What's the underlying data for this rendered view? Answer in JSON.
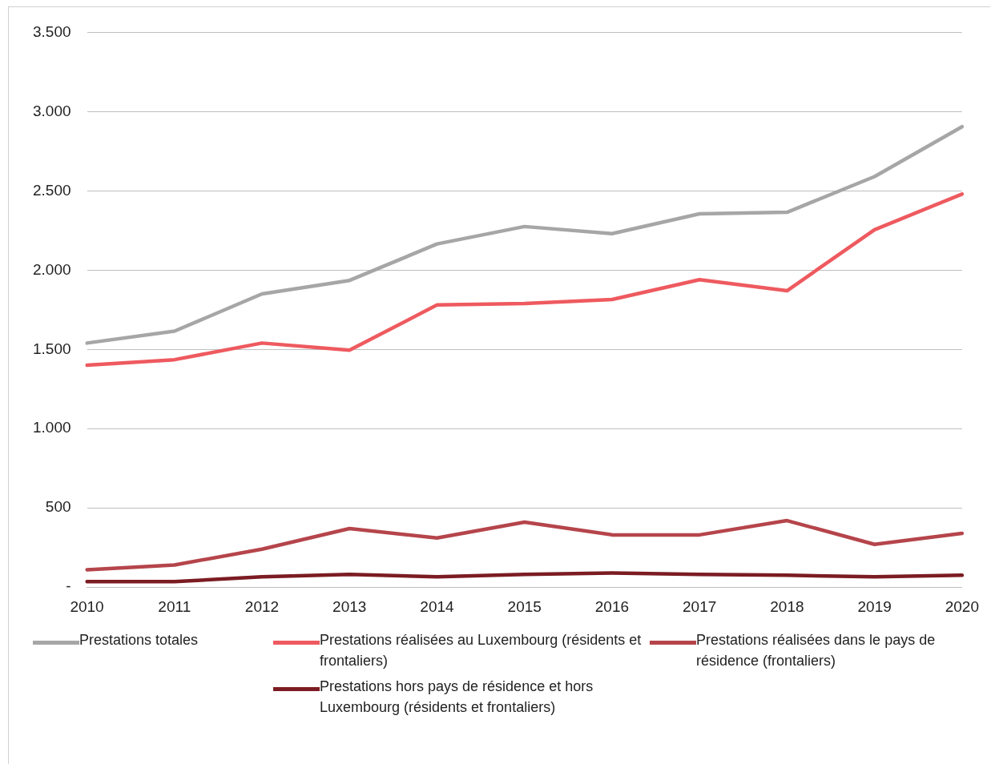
{
  "chart_data": {
    "type": "line",
    "categories": [
      "2010",
      "2011",
      "2012",
      "2013",
      "2014",
      "2015",
      "2016",
      "2017",
      "2018",
      "2019",
      "2020"
    ],
    "series": [
      {
        "name": "Prestations totales",
        "color": "#a6a6a6",
        "values": [
          1540,
          1615,
          1850,
          1935,
          2165,
          2275,
          2230,
          2355,
          2365,
          2590,
          2905
        ]
      },
      {
        "name": "Prestations réalisées au Luxembourg (résidents et frontaliers)",
        "color": "#ee5a5f",
        "values": [
          1400,
          1435,
          1540,
          1495,
          1780,
          1790,
          1815,
          1940,
          1870,
          2255,
          2480
        ]
      },
      {
        "name": "Prestations réalisées dans le pays de résidence (frontaliers)",
        "color": "#b5454b",
        "values": [
          110,
          140,
          240,
          370,
          310,
          410,
          330,
          330,
          420,
          270,
          340
        ]
      },
      {
        "name": "Prestations hors pays de résidence et hors Luxembourg (résidents et frontaliers)",
        "color": "#7b1c22",
        "values": [
          35,
          35,
          65,
          80,
          65,
          80,
          90,
          80,
          75,
          65,
          75
        ]
      }
    ],
    "ylim": [
      0,
      3500
    ],
    "yticks": [
      {
        "value": 0,
        "label": "-"
      },
      {
        "value": 500,
        "label": "500"
      },
      {
        "value": 1000,
        "label": "1.000"
      },
      {
        "value": 1500,
        "label": "1.500"
      },
      {
        "value": 2000,
        "label": "2.000"
      },
      {
        "value": 2500,
        "label": "2.500"
      },
      {
        "value": 3000,
        "label": "3.000"
      },
      {
        "value": 3500,
        "label": "3.500"
      }
    ],
    "grid": "y",
    "legend": "bottom",
    "marker": "none",
    "line_style": "solid"
  }
}
